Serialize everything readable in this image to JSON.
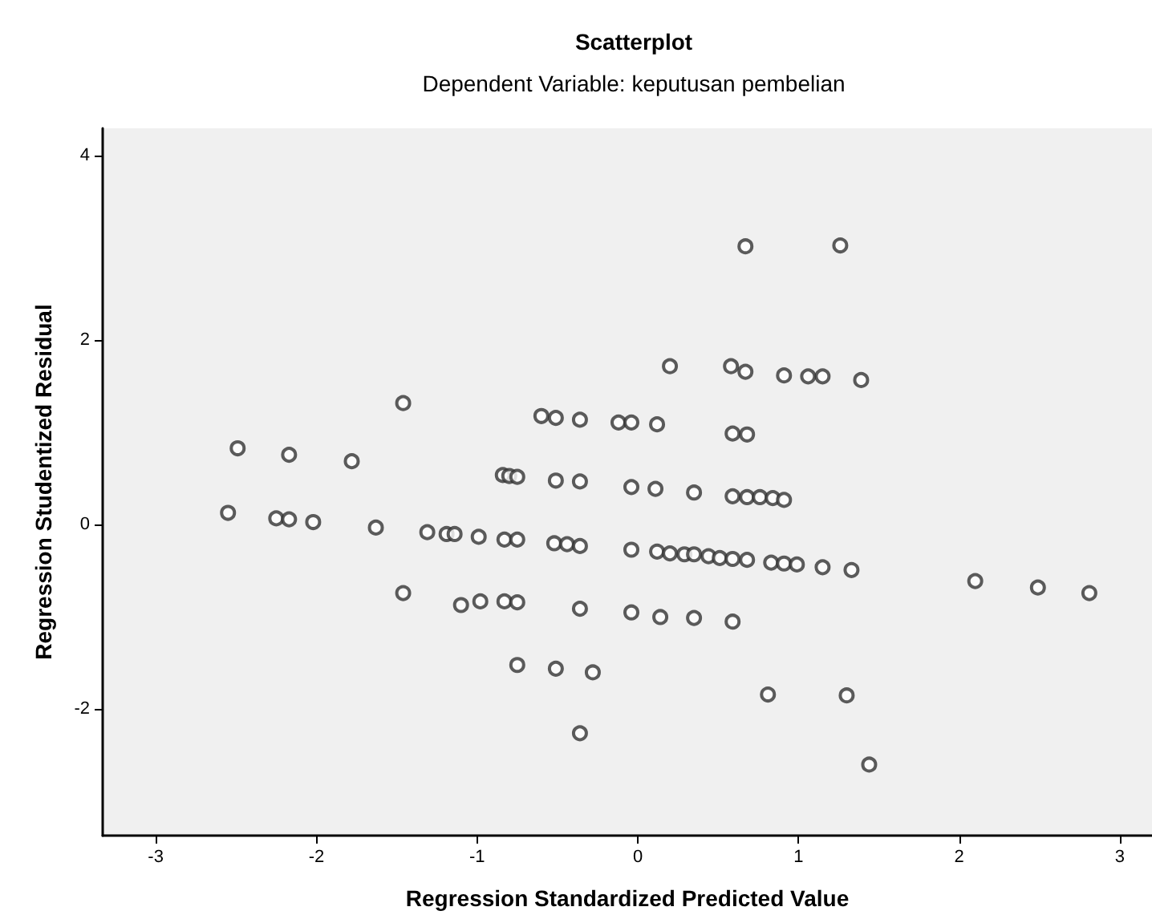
{
  "chart_data": {
    "type": "scatter",
    "title": "Scatterplot",
    "subtitle": "Dependent Variable: keputusan pembelian",
    "xlabel": "Regression Standardized Predicted Value",
    "ylabel": "Regression Studentized Residual",
    "xlim": [
      -3.33,
      3.2
    ],
    "ylim": [
      -3.37,
      4.3
    ],
    "xticks": [
      -3,
      -2,
      -1,
      0,
      1,
      2,
      3
    ],
    "yticks": [
      -2,
      0,
      2,
      4
    ],
    "grid": false,
    "marker": "circle",
    "series": [
      {
        "color": "#333333",
        "x": [
          -1.46,
          -2.49,
          -2.17,
          -1.78,
          -0.6,
          -0.51,
          -0.36,
          -0.12,
          -0.04,
          -0.84,
          -0.8,
          -0.75,
          -0.51,
          -0.36,
          -0.04,
          0.67,
          1.26,
          0.2,
          0.58,
          0.67,
          0.91,
          1.06,
          1.15,
          1.39,
          0.12,
          0.59,
          0.68,
          0.11,
          0.35,
          0.59,
          0.68,
          0.76,
          0.84,
          0.91,
          -2.55,
          -2.25,
          -2.17,
          -2.02,
          -1.63,
          -1.31,
          -1.19,
          -1.14,
          -0.99,
          -0.83,
          -0.75,
          -0.52,
          -0.44,
          -0.36,
          -0.04,
          -1.46,
          -1.1,
          -0.98,
          -0.83,
          -0.75,
          -0.36,
          -0.04,
          -0.75,
          -0.51,
          -0.28,
          -0.36,
          0.12,
          0.2,
          0.29,
          0.35,
          0.44,
          0.51,
          0.59,
          0.68,
          0.83,
          0.91,
          0.99,
          1.15,
          1.33,
          2.1,
          2.49,
          2.81,
          0.14,
          0.35,
          0.59,
          0.81,
          1.3,
          1.44
        ],
        "values": [
          1.32,
          0.83,
          0.76,
          0.69,
          1.18,
          1.16,
          1.14,
          1.11,
          1.11,
          0.54,
          0.53,
          0.52,
          0.48,
          0.47,
          0.41,
          3.02,
          3.03,
          1.72,
          1.72,
          1.66,
          1.62,
          1.61,
          1.61,
          1.57,
          1.09,
          0.99,
          0.98,
          0.39,
          0.35,
          0.31,
          0.3,
          0.3,
          0.29,
          0.27,
          0.13,
          0.07,
          0.06,
          0.03,
          -0.03,
          -0.08,
          -0.1,
          -0.1,
          -0.13,
          -0.16,
          -0.16,
          -0.2,
          -0.21,
          -0.23,
          -0.27,
          -0.74,
          -0.87,
          -0.83,
          -0.83,
          -0.84,
          -0.91,
          -0.95,
          -1.52,
          -1.56,
          -1.6,
          -2.26,
          -0.29,
          -0.31,
          -0.32,
          -0.32,
          -0.34,
          -0.36,
          -0.37,
          -0.38,
          -0.41,
          -0.42,
          -0.43,
          -0.46,
          -0.49,
          -0.61,
          -0.68,
          -0.74,
          -1.0,
          -1.01,
          -1.05,
          -1.84,
          -1.85,
          -2.6
        ]
      }
    ]
  }
}
